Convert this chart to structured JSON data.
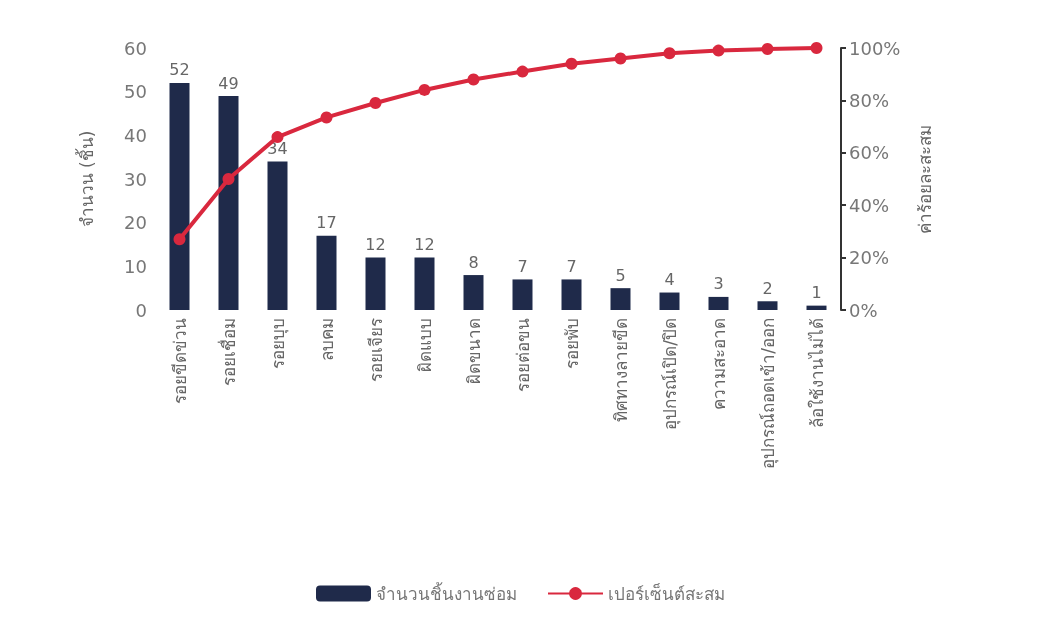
{
  "chart_data": {
    "type": "bar",
    "categories": [
      "รอยขีดข่วน",
      "รอยเชื่อม",
      "รอยบุบ",
      "ลบคม",
      "รอยเจียร",
      "ผิดแบบ",
      "ผิดขนาด",
      "รอยต่อขน",
      "รอยพับ",
      "ทิศทางลายขีด",
      "อุปกรณ์เปิด/ปิด",
      "ความสะอาด",
      "อุปกรณ์ถอดเข้า/ออก",
      "ล้อใช้งานไม่ได้"
    ],
    "series": [
      {
        "name": "จำนวนชิ้นงานซ่อม",
        "color": "#1f2a4a",
        "values": [
          52,
          49,
          34,
          17,
          12,
          12,
          8,
          7,
          7,
          5,
          4,
          3,
          2,
          1
        ],
        "data_labels": true
      },
      {
        "name": "เปอร์เซ็นต์สะสม",
        "type": "line",
        "axis": "y2",
        "color": "#d9283e",
        "marker": "circle",
        "values": [
          27,
          50,
          66,
          73.5,
          79,
          84,
          88,
          91,
          94,
          96,
          98,
          99,
          99.6,
          100
        ]
      }
    ],
    "ylabel": "จำนวน (ชิ้น)",
    "y2label": "ค่าร้อยละสะสม",
    "ylim": [
      0,
      60
    ],
    "yticks": [
      0,
      10,
      20,
      30,
      40,
      50,
      60
    ],
    "y2lim": [
      0,
      100
    ],
    "y2ticks": [
      {
        "value": 0,
        "label": "0%"
      },
      {
        "value": 20,
        "label": "20%"
      },
      {
        "value": 40,
        "label": "40%"
      },
      {
        "value": 60,
        "label": "60%"
      },
      {
        "value": 80,
        "label": "80%"
      },
      {
        "value": 100,
        "label": "100%"
      }
    ],
    "legend": "bottom",
    "grid": false
  }
}
